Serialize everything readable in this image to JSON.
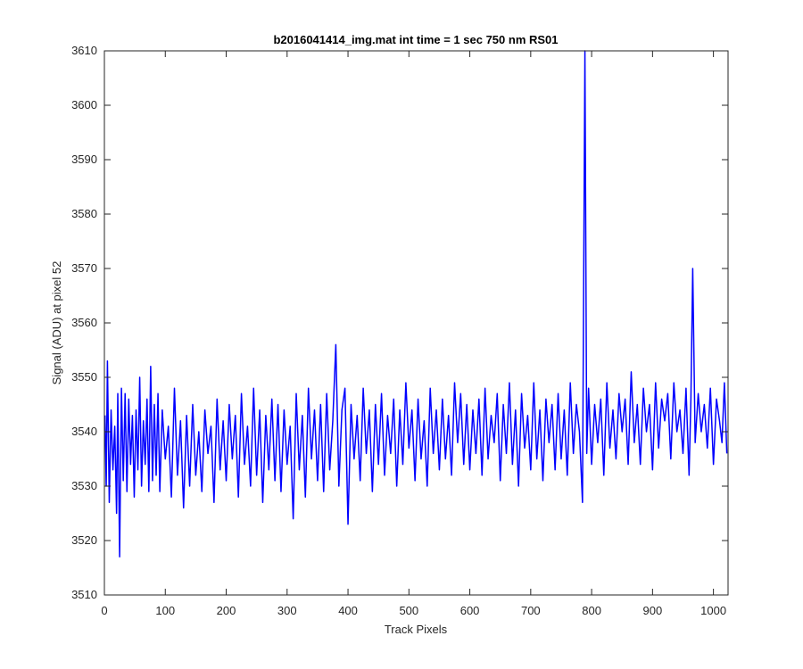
{
  "chart_data": {
    "type": "line",
    "title": "b2016041414_img.mat int time = 1 sec  750 nm RS01",
    "xlabel": "Track Pixels",
    "ylabel": "Signal (ADU) at pixel 52",
    "xlim": [
      0,
      1024
    ],
    "ylim": [
      3510,
      3610
    ],
    "xticks": [
      0,
      100,
      200,
      300,
      400,
      500,
      600,
      700,
      800,
      900,
      1000
    ],
    "yticks": [
      3510,
      3520,
      3530,
      3540,
      3550,
      3560,
      3570,
      3580,
      3590,
      3600,
      3610
    ],
    "grid": false,
    "legend": "none",
    "series": [
      {
        "color": "#0000ff",
        "x": [
          1,
          3,
          5,
          8,
          11,
          14,
          17,
          20,
          22,
          25,
          28,
          31,
          34,
          37,
          40,
          43,
          46,
          49,
          52,
          55,
          58,
          61,
          64,
          67,
          70,
          73,
          76,
          79,
          82,
          85,
          88,
          91,
          95,
          100,
          105,
          110,
          115,
          120,
          125,
          130,
          135,
          140,
          145,
          150,
          155,
          160,
          165,
          170,
          175,
          180,
          185,
          190,
          195,
          200,
          205,
          210,
          215,
          220,
          225,
          230,
          235,
          240,
          245,
          250,
          255,
          260,
          265,
          270,
          275,
          280,
          285,
          290,
          295,
          300,
          305,
          310,
          315,
          320,
          325,
          330,
          335,
          340,
          345,
          350,
          355,
          360,
          365,
          370,
          375,
          380,
          385,
          390,
          395,
          400,
          405,
          410,
          415,
          420,
          425,
          430,
          435,
          440,
          445,
          450,
          455,
          460,
          465,
          470,
          475,
          480,
          485,
          490,
          495,
          500,
          505,
          510,
          515,
          520,
          525,
          530,
          535,
          540,
          545,
          550,
          555,
          560,
          565,
          570,
          575,
          580,
          585,
          590,
          595,
          600,
          605,
          610,
          615,
          620,
          625,
          630,
          635,
          640,
          645,
          650,
          655,
          660,
          665,
          670,
          675,
          680,
          685,
          690,
          695,
          700,
          705,
          710,
          715,
          720,
          725,
          730,
          735,
          740,
          745,
          750,
          755,
          760,
          765,
          770,
          775,
          780,
          785,
          789,
          792,
          795,
          800,
          805,
          810,
          815,
          820,
          825,
          830,
          835,
          840,
          845,
          850,
          855,
          860,
          865,
          870,
          875,
          880,
          885,
          890,
          895,
          900,
          905,
          910,
          915,
          920,
          925,
          930,
          935,
          940,
          945,
          950,
          955,
          960,
          963,
          966,
          970,
          975,
          980,
          985,
          990,
          995,
          1000,
          1005,
          1010,
          1014,
          1018,
          1022
        ],
        "y": [
          3543,
          3530,
          3553,
          3527,
          3544,
          3533,
          3541,
          3525,
          3547,
          3517,
          3548,
          3531,
          3547,
          3529,
          3546,
          3534,
          3543,
          3528,
          3544,
          3533,
          3550,
          3530,
          3542,
          3534,
          3546,
          3529,
          3552,
          3531,
          3545,
          3532,
          3547,
          3529,
          3544,
          3535,
          3541,
          3528,
          3548,
          3532,
          3542,
          3526,
          3543,
          3530,
          3545,
          3532,
          3540,
          3529,
          3544,
          3536,
          3541,
          3527,
          3546,
          3533,
          3542,
          3531,
          3545,
          3535,
          3543,
          3528,
          3547,
          3534,
          3541,
          3530,
          3548,
          3532,
          3544,
          3527,
          3543,
          3533,
          3546,
          3531,
          3545,
          3529,
          3544,
          3534,
          3541,
          3524,
          3547,
          3533,
          3543,
          3528,
          3548,
          3535,
          3544,
          3531,
          3545,
          3529,
          3547,
          3533,
          3542,
          3556,
          3530,
          3544,
          3548,
          3523,
          3545,
          3535,
          3543,
          3531,
          3548,
          3536,
          3544,
          3529,
          3545,
          3534,
          3547,
          3532,
          3543,
          3536,
          3546,
          3530,
          3544,
          3534,
          3549,
          3537,
          3544,
          3531,
          3546,
          3535,
          3542,
          3530,
          3548,
          3536,
          3544,
          3533,
          3546,
          3535,
          3543,
          3532,
          3549,
          3538,
          3547,
          3534,
          3545,
          3533,
          3544,
          3536,
          3546,
          3532,
          3548,
          3535,
          3543,
          3538,
          3547,
          3531,
          3545,
          3536,
          3549,
          3534,
          3544,
          3530,
          3547,
          3537,
          3543,
          3533,
          3549,
          3535,
          3544,
          3531,
          3546,
          3538,
          3545,
          3533,
          3547,
          3535,
          3544,
          3532,
          3549,
          3536,
          3545,
          3540,
          3527,
          3610,
          3536,
          3548,
          3534,
          3545,
          3538,
          3546,
          3532,
          3549,
          3537,
          3544,
          3535,
          3547,
          3540,
          3546,
          3534,
          3551,
          3538,
          3545,
          3534,
          3548,
          3540,
          3545,
          3533,
          3549,
          3537,
          3546,
          3542,
          3547,
          3535,
          3549,
          3540,
          3544,
          3536,
          3548,
          3532,
          3546,
          3570,
          3538,
          3547,
          3540,
          3545,
          3537,
          3548,
          3534,
          3546,
          3542,
          3538,
          3549,
          3536
        ]
      }
    ]
  }
}
